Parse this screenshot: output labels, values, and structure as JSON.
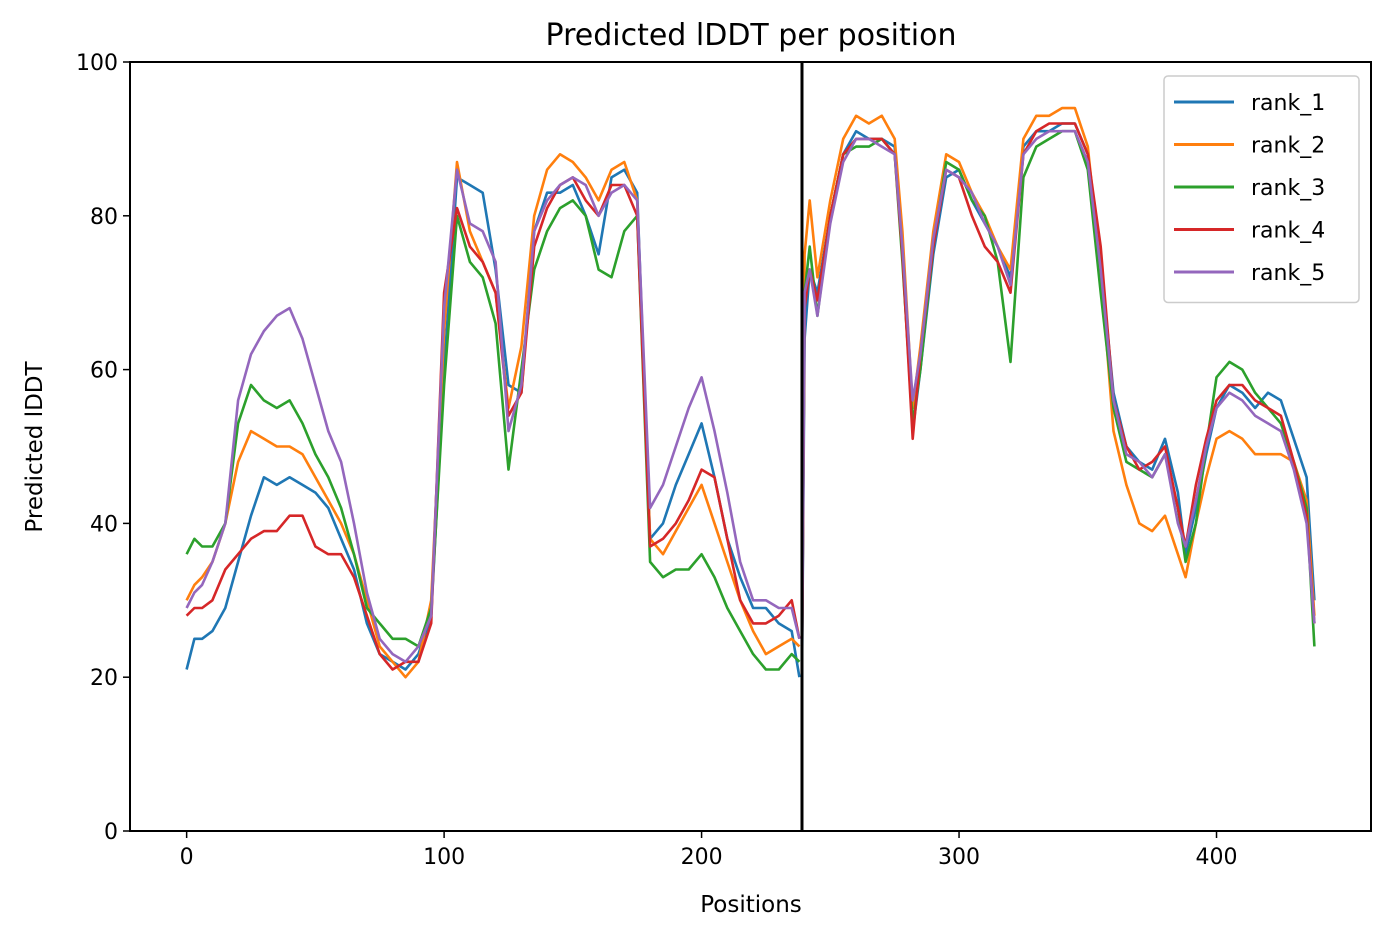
{
  "chart_data": {
    "type": "line",
    "title": "Predicted lDDT per position",
    "xlabel": "Positions",
    "ylabel": "Predicted lDDT",
    "xlim": [
      -22,
      460
    ],
    "ylim": [
      0,
      100
    ],
    "xticks": [
      0,
      100,
      200,
      300,
      400
    ],
    "yticks": [
      0,
      20,
      40,
      60,
      80,
      100
    ],
    "grid": false,
    "legend_position": "top-right",
    "vline_x": 239,
    "series": [
      {
        "name": "rank_1",
        "color": "#1f77b4",
        "x": [
          0,
          3,
          6,
          10,
          15,
          20,
          25,
          30,
          35,
          40,
          45,
          50,
          55,
          60,
          65,
          70,
          75,
          80,
          85,
          90,
          95,
          100,
          105,
          110,
          115,
          120,
          125,
          130,
          135,
          140,
          145,
          150,
          155,
          160,
          165,
          170,
          175,
          180,
          185,
          190,
          195,
          200,
          205,
          210,
          215,
          220,
          225,
          230,
          235,
          238
        ],
        "values": [
          21,
          25,
          25,
          26,
          29,
          35,
          41,
          46,
          45,
          46,
          45,
          44,
          42,
          38,
          34,
          27,
          23,
          22,
          21,
          23,
          28,
          60,
          85,
          84,
          83,
          73,
          58,
          57,
          78,
          83,
          83,
          84,
          80,
          75,
          85,
          86,
          83,
          38,
          40,
          45,
          49,
          53,
          46,
          38,
          33,
          29,
          29,
          27,
          26,
          20
        ]
      },
      {
        "name": "rank_2",
        "color": "#ff7f0e",
        "x": [
          0,
          3,
          6,
          10,
          15,
          20,
          25,
          30,
          35,
          40,
          45,
          50,
          55,
          60,
          65,
          70,
          75,
          80,
          85,
          90,
          95,
          100,
          105,
          110,
          115,
          120,
          125,
          130,
          135,
          140,
          145,
          150,
          155,
          160,
          165,
          170,
          175,
          180,
          185,
          190,
          195,
          200,
          205,
          210,
          215,
          220,
          225,
          230,
          235,
          238
        ],
        "values": [
          30,
          32,
          33,
          35,
          40,
          48,
          52,
          51,
          50,
          50,
          49,
          46,
          43,
          40,
          36,
          30,
          24,
          22,
          20,
          22,
          30,
          65,
          87,
          78,
          74,
          70,
          55,
          63,
          80,
          86,
          88,
          87,
          85,
          82,
          86,
          87,
          82,
          38,
          36,
          39,
          42,
          45,
          40,
          35,
          30,
          26,
          23,
          24,
          25,
          24
        ]
      },
      {
        "name": "rank_3",
        "color": "#2ca02c",
        "x": [
          0,
          3,
          6,
          10,
          15,
          20,
          25,
          30,
          35,
          40,
          45,
          50,
          55,
          60,
          65,
          70,
          75,
          80,
          85,
          90,
          95,
          100,
          105,
          110,
          115,
          120,
          125,
          130,
          135,
          140,
          145,
          150,
          155,
          160,
          165,
          170,
          175,
          180,
          185,
          190,
          195,
          200,
          205,
          210,
          215,
          220,
          225,
          230,
          235,
          238
        ],
        "values": [
          36,
          38,
          37,
          37,
          40,
          53,
          58,
          56,
          55,
          56,
          53,
          49,
          46,
          42,
          36,
          29,
          27,
          25,
          25,
          24,
          29,
          58,
          80,
          74,
          72,
          66,
          47,
          60,
          73,
          78,
          81,
          82,
          80,
          73,
          72,
          78,
          80,
          35,
          33,
          34,
          34,
          36,
          33,
          29,
          26,
          23,
          21,
          21,
          23,
          22
        ]
      },
      {
        "name": "rank_4",
        "color": "#d62728",
        "x": [
          0,
          3,
          6,
          10,
          15,
          20,
          25,
          30,
          35,
          40,
          45,
          50,
          55,
          60,
          65,
          70,
          75,
          80,
          85,
          90,
          95,
          100,
          105,
          110,
          115,
          120,
          125,
          130,
          135,
          140,
          145,
          150,
          155,
          160,
          165,
          170,
          175,
          180,
          185,
          190,
          195,
          200,
          205,
          210,
          215,
          220,
          225,
          230,
          235,
          238
        ],
        "values": [
          28,
          29,
          29,
          30,
          34,
          36,
          38,
          39,
          39,
          41,
          41,
          37,
          36,
          36,
          33,
          28,
          23,
          21,
          22,
          22,
          27,
          70,
          81,
          76,
          74,
          70,
          54,
          57,
          76,
          81,
          84,
          85,
          82,
          80,
          84,
          84,
          80,
          37,
          38,
          40,
          43,
          47,
          46,
          38,
          30,
          27,
          27,
          28,
          30,
          25
        ]
      },
      {
        "name": "rank_5",
        "color": "#9467bd",
        "x": [
          0,
          3,
          6,
          10,
          15,
          20,
          25,
          30,
          35,
          40,
          45,
          50,
          55,
          60,
          65,
          70,
          75,
          80,
          85,
          90,
          95,
          100,
          105,
          110,
          115,
          120,
          125,
          130,
          135,
          140,
          145,
          150,
          155,
          160,
          165,
          170,
          175,
          180,
          185,
          190,
          195,
          200,
          205,
          210,
          215,
          220,
          225,
          230,
          235,
          238
        ],
        "values": [
          29,
          31,
          32,
          35,
          40,
          56,
          62,
          65,
          67,
          68,
          64,
          58,
          52,
          48,
          40,
          31,
          25,
          23,
          22,
          24,
          28,
          68,
          86,
          79,
          78,
          74,
          52,
          58,
          78,
          82,
          84,
          85,
          84,
          80,
          83,
          84,
          82,
          42,
          45,
          50,
          55,
          59,
          52,
          44,
          35,
          30,
          30,
          29,
          29,
          25
        ]
      }
    ],
    "series_b": [
      {
        "name": "rank_1",
        "x": [
          239,
          240,
          242,
          245,
          250,
          255,
          260,
          265,
          270,
          275,
          278,
          282,
          285,
          290,
          295,
          300,
          305,
          310,
          315,
          320,
          325,
          330,
          335,
          340,
          345,
          350,
          355,
          360,
          365,
          370,
          375,
          380,
          385,
          388,
          392,
          396,
          400,
          405,
          410,
          415,
          420,
          425,
          430,
          435,
          438
        ],
        "values": [
          20,
          64,
          73,
          70,
          80,
          88,
          91,
          90,
          90,
          89,
          75,
          52,
          60,
          75,
          85,
          86,
          82,
          79,
          76,
          72,
          89,
          91,
          91,
          92,
          92,
          88,
          74,
          57,
          50,
          48,
          47,
          51,
          44,
          36,
          42,
          49,
          55,
          58,
          57,
          55,
          57,
          56,
          51,
          46,
          30
        ]
      },
      {
        "name": "rank_2",
        "x": [
          239,
          240,
          242,
          245,
          250,
          255,
          260,
          265,
          270,
          275,
          278,
          282,
          285,
          290,
          295,
          300,
          305,
          310,
          315,
          320,
          325,
          330,
          335,
          340,
          345,
          350,
          355,
          360,
          365,
          370,
          375,
          380,
          385,
          388,
          392,
          396,
          400,
          405,
          410,
          415,
          420,
          425,
          430,
          435,
          438
        ],
        "values": [
          24,
          75,
          82,
          72,
          82,
          90,
          93,
          92,
          93,
          90,
          78,
          55,
          63,
          78,
          88,
          87,
          83,
          80,
          76,
          73,
          90,
          93,
          93,
          94,
          94,
          89,
          73,
          52,
          45,
          40,
          39,
          41,
          36,
          33,
          40,
          46,
          51,
          52,
          51,
          49,
          49,
          49,
          48,
          43,
          28
        ]
      },
      {
        "name": "rank_3",
        "x": [
          239,
          240,
          242,
          245,
          250,
          255,
          260,
          265,
          270,
          275,
          278,
          282,
          285,
          290,
          295,
          300,
          305,
          310,
          315,
          320,
          325,
          330,
          335,
          340,
          345,
          350,
          355,
          360,
          365,
          370,
          375,
          380,
          385,
          388,
          392,
          396,
          400,
          405,
          410,
          415,
          420,
          425,
          430,
          435,
          438
        ],
        "values": [
          22,
          70,
          76,
          67,
          80,
          88,
          89,
          89,
          90,
          88,
          74,
          53,
          60,
          76,
          87,
          86,
          82,
          80,
          74,
          61,
          85,
          89,
          90,
          91,
          91,
          86,
          70,
          55,
          48,
          47,
          46,
          49,
          42,
          35,
          40,
          50,
          59,
          61,
          60,
          57,
          55,
          53,
          48,
          42,
          24
        ]
      },
      {
        "name": "rank_4",
        "x": [
          239,
          240,
          242,
          245,
          250,
          255,
          260,
          265,
          270,
          275,
          278,
          282,
          285,
          290,
          295,
          300,
          305,
          310,
          315,
          320,
          325,
          330,
          335,
          340,
          345,
          350,
          355,
          360,
          365,
          370,
          375,
          380,
          385,
          388,
          392,
          396,
          400,
          405,
          410,
          415,
          420,
          425,
          430,
          435,
          438
        ],
        "values": [
          21,
          68,
          73,
          69,
          80,
          88,
          90,
          90,
          90,
          88,
          75,
          51,
          62,
          76,
          86,
          85,
          80,
          76,
          74,
          70,
          88,
          91,
          92,
          92,
          92,
          88,
          76,
          56,
          50,
          47,
          48,
          50,
          42,
          37,
          45,
          51,
          56,
          58,
          58,
          56,
          55,
          54,
          48,
          41,
          27
        ]
      },
      {
        "name": "rank_5",
        "x": [
          239,
          240,
          242,
          245,
          250,
          255,
          260,
          265,
          270,
          275,
          278,
          282,
          285,
          290,
          295,
          300,
          305,
          310,
          315,
          320,
          325,
          330,
          335,
          340,
          345,
          350,
          355,
          360,
          365,
          370,
          375,
          380,
          385,
          388,
          392,
          396,
          400,
          405,
          410,
          415,
          420,
          425,
          430,
          435,
          438
        ],
        "values": [
          22,
          70,
          73,
          67,
          79,
          87,
          90,
          90,
          89,
          88,
          76,
          56,
          62,
          77,
          86,
          85,
          83,
          79,
          76,
          71,
          88,
          90,
          91,
          91,
          91,
          87,
          73,
          56,
          49,
          48,
          46,
          49,
          40,
          37,
          43,
          50,
          55,
          57,
          56,
          54,
          53,
          52,
          47,
          40,
          27
        ]
      }
    ]
  }
}
